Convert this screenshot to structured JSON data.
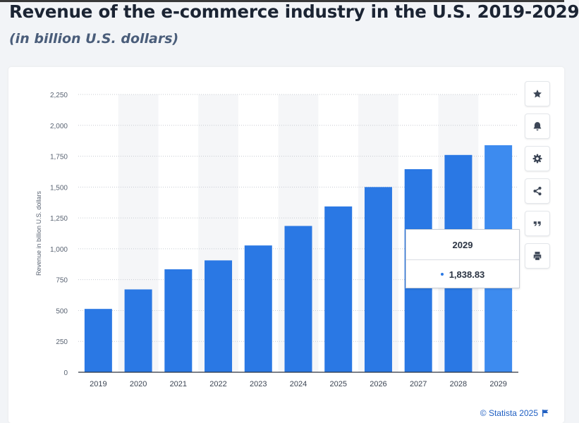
{
  "header": {
    "title": "Revenue of the e-commerce industry in the U.S. 2019-2029",
    "subtitle": "(in billion U.S. dollars)"
  },
  "chart_data": {
    "type": "bar",
    "title": "Revenue of the e-commerce industry in the U.S. 2019-2029",
    "subtitle": "(in billion U.S. dollars)",
    "xlabel": "",
    "ylabel": "Revenue in billion U.S. dollars",
    "categories": [
      "2019",
      "2020",
      "2021",
      "2022",
      "2023",
      "2024",
      "2025",
      "2026",
      "2027",
      "2028",
      "2029"
    ],
    "values": [
      513,
      671,
      834,
      906,
      1027,
      1185,
      1343,
      1500,
      1645,
      1760,
      1838.83
    ],
    "ylim": [
      0,
      2250
    ],
    "yticks": [
      0,
      250,
      500,
      750,
      1000,
      1250,
      1500,
      1750,
      2000,
      2250
    ],
    "ytick_labels": [
      "0",
      "250",
      "500",
      "750",
      "1,000",
      "1,250",
      "1,500",
      "1,750",
      "2,000",
      "2,250"
    ],
    "grid": true,
    "colors": {
      "bar": "#2a78e4",
      "bar_highlight": "#3d8bef",
      "band": "#f5f6f8"
    },
    "highlighted_index": 10
  },
  "tooltip": {
    "category": "2029",
    "value": "1,838.83"
  },
  "toolbar": {
    "buttons": [
      {
        "name": "favorite-button",
        "icon": "star-icon"
      },
      {
        "name": "notification-button",
        "icon": "bell-icon"
      },
      {
        "name": "settings-button",
        "icon": "gear-icon"
      },
      {
        "name": "share-button",
        "icon": "share-icon"
      },
      {
        "name": "cite-button",
        "icon": "quote-icon"
      },
      {
        "name": "print-button",
        "icon": "print-icon"
      }
    ]
  },
  "footer": {
    "credit": "© Statista 2025"
  }
}
